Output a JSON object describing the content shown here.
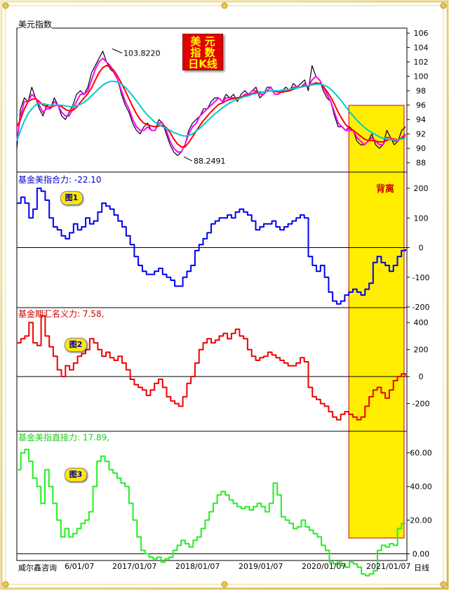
{
  "window": {
    "title": "美元指数",
    "company": "威尔鑫咨询",
    "period_label": "日线"
  },
  "badge": {
    "lines": [
      "美  元",
      "指  数",
      "日K线"
    ]
  },
  "divergence_label": "背离",
  "chart_data": [
    {
      "type": "line",
      "name": "price",
      "ylim": [
        87,
        106.5
      ],
      "yticks": [
        "88",
        "90",
        "92",
        "94",
        "96",
        "98",
        "100",
        "102",
        "104",
        "106"
      ],
      "annotations": [
        {
          "text": "103.8220",
          "x": "2017-01",
          "y": 103.82
        },
        {
          "text": "88.2491",
          "x": "2018-02",
          "y": 88.25
        }
      ],
      "x_ticks": [
        "6/01/07",
        "2017/01/07",
        "2018/01/07",
        "2019/01/07",
        "2020/01/07",
        "2021/01/07"
      ],
      "series": [
        {
          "color": "#000000",
          "values": [
            90.0,
            95.5,
            97.0,
            96.5,
            98.5,
            97.0,
            95.5,
            94.5,
            96.0,
            95.5,
            97.0,
            96.0,
            94.5,
            94.0,
            95.0,
            96.0,
            97.5,
            98.0,
            97.5,
            98.5,
            100.5,
            101.5,
            102.5,
            103.5,
            102.0,
            101.0,
            100.5,
            99.5,
            97.5,
            96.0,
            95.0,
            93.5,
            92.5,
            92.0,
            93.0,
            93.5,
            92.5,
            92.5,
            94.0,
            93.5,
            92.0,
            90.5,
            89.5,
            89.0,
            89.5,
            90.5,
            92.5,
            93.5,
            94.0,
            94.5,
            95.5,
            95.5,
            96.5,
            97.0,
            97.0,
            96.5,
            97.5,
            97.0,
            97.5,
            96.5,
            97.5,
            98.0,
            97.5,
            98.0,
            98.5,
            97.0,
            97.5,
            98.5,
            98.5,
            97.5,
            97.5,
            98.0,
            98.5,
            98.0,
            99.0,
            98.5,
            99.0,
            99.5,
            98.0,
            101.5,
            100.0,
            99.5,
            98.0,
            97.0,
            96.5,
            94.5,
            93.0,
            93.0,
            92.5,
            93.0,
            92.5,
            91.0,
            90.5,
            90.5,
            91.0,
            92.0,
            90.5,
            90.0,
            90.5,
            92.5,
            91.5,
            90.5,
            91.0,
            92.5,
            93.0
          ]
        },
        {
          "color": "#ff00ff",
          "values": [
            91.0,
            94.5,
            96.5,
            96.5,
            97.5,
            97.0,
            96.0,
            95.0,
            95.5,
            95.5,
            96.5,
            96.0,
            95.0,
            94.5,
            94.5,
            95.5,
            96.5,
            97.5,
            97.5,
            98.0,
            99.5,
            101.0,
            102.0,
            102.5,
            102.0,
            101.5,
            100.5,
            99.5,
            98.0,
            96.5,
            95.5,
            94.0,
            93.0,
            92.5,
            92.5,
            93.0,
            92.5,
            92.5,
            93.5,
            93.5,
            92.5,
            91.0,
            90.0,
            89.5,
            89.5,
            90.5,
            92.0,
            93.0,
            93.5,
            94.5,
            95.0,
            95.5,
            96.0,
            96.5,
            97.0,
            96.5,
            97.0,
            97.0,
            97.0,
            97.0,
            97.0,
            97.5,
            97.5,
            98.0,
            98.0,
            97.5,
            97.5,
            98.0,
            98.5,
            97.5,
            97.5,
            98.0,
            98.0,
            98.0,
            98.5,
            98.5,
            98.5,
            99.0,
            98.5,
            99.5,
            100.0,
            99.5,
            98.5,
            97.5,
            96.5,
            95.0,
            93.5,
            93.0,
            92.5,
            92.5,
            92.5,
            91.5,
            91.0,
            90.5,
            91.0,
            91.5,
            91.0,
            90.5,
            90.5,
            91.5,
            91.5,
            91.0,
            91.0,
            91.5,
            92.0
          ]
        },
        {
          "color": "#ff0000",
          "values": [
            93.0,
            94.0,
            95.5,
            96.5,
            96.8,
            96.9,
            96.5,
            96.0,
            95.8,
            95.7,
            95.9,
            96.0,
            95.8,
            95.4,
            95.2,
            95.3,
            95.7,
            96.4,
            97.0,
            97.6,
            98.4,
            99.5,
            100.5,
            101.2,
            101.5,
            101.3,
            100.8,
            100.0,
            99.0,
            98.0,
            96.9,
            95.8,
            94.8,
            94.0,
            93.5,
            93.3,
            93.1,
            93.0,
            93.1,
            93.2,
            92.9,
            92.2,
            91.3,
            90.6,
            90.2,
            90.2,
            90.8,
            91.6,
            92.4,
            93.2,
            93.9,
            94.5,
            95.1,
            95.6,
            96.1,
            96.3,
            96.6,
            96.8,
            96.9,
            97.0,
            97.1,
            97.3,
            97.4,
            97.6,
            97.8,
            97.8,
            97.8,
            97.9,
            98.0,
            97.9,
            97.8,
            97.8,
            97.9,
            98.0,
            98.2,
            98.4,
            98.5,
            98.7,
            98.6,
            98.9,
            99.1,
            99.0,
            98.6,
            97.9,
            97.1,
            96.1,
            95.0,
            94.1,
            93.3,
            92.8,
            92.5,
            92.1,
            91.7,
            91.3,
            91.1,
            91.1,
            91.0,
            90.9,
            90.9,
            91.1,
            91.3,
            91.3,
            91.2,
            91.4,
            91.8
          ]
        },
        {
          "color": "#00cccc",
          "values": [
            91.0,
            92.5,
            93.8,
            94.8,
            95.5,
            96.0,
            96.2,
            96.2,
            96.1,
            96.0,
            96.0,
            96.0,
            96.0,
            95.9,
            95.8,
            95.8,
            95.9,
            96.1,
            96.4,
            96.8,
            97.3,
            97.8,
            98.3,
            98.8,
            99.1,
            99.3,
            99.3,
            99.2,
            98.9,
            98.5,
            97.9,
            97.3,
            96.6,
            95.9,
            95.2,
            94.6,
            94.1,
            93.6,
            93.3,
            93.0,
            92.8,
            92.5,
            92.2,
            92.0,
            91.8,
            91.7,
            91.8,
            92.0,
            92.4,
            92.8,
            93.3,
            93.8,
            94.3,
            94.8,
            95.2,
            95.6,
            96.0,
            96.3,
            96.6,
            96.8,
            97.0,
            97.2,
            97.3,
            97.5,
            97.6,
            97.7,
            97.8,
            97.9,
            98.0,
            98.0,
            98.0,
            98.1,
            98.1,
            98.2,
            98.3,
            98.4,
            98.5,
            98.6,
            98.7,
            98.8,
            98.9,
            98.9,
            98.8,
            98.6,
            98.2,
            97.7,
            97.1,
            96.5,
            95.8,
            95.1,
            94.5,
            93.9,
            93.4,
            92.9,
            92.5,
            92.2,
            91.9,
            91.6,
            91.4,
            91.3,
            91.2,
            91.2,
            91.2,
            91.3,
            91.4
          ]
        }
      ]
    },
    {
      "type": "line",
      "name": "panel1",
      "title": "基金美指合力: -22.10",
      "label": "图1",
      "ylim": [
        -200,
        250
      ],
      "yticks": [
        "200",
        "100",
        "0",
        "-100",
        "-200"
      ],
      "series": [
        {
          "color": "#0000ee",
          "values": [
            150,
            170,
            150,
            100,
            130,
            200,
            190,
            160,
            100,
            70,
            60,
            40,
            30,
            50,
            80,
            60,
            70,
            100,
            80,
            90,
            120,
            150,
            140,
            130,
            110,
            90,
            70,
            40,
            10,
            -30,
            -60,
            -80,
            -90,
            -90,
            -80,
            -70,
            -90,
            -100,
            -110,
            -130,
            -130,
            -100,
            -80,
            -60,
            -10,
            10,
            30,
            50,
            80,
            90,
            100,
            100,
            110,
            100,
            120,
            130,
            120,
            110,
            90,
            60,
            70,
            80,
            80,
            90,
            70,
            60,
            70,
            80,
            90,
            100,
            110,
            100,
            -30,
            -60,
            -80,
            -60,
            -100,
            -150,
            -180,
            -190,
            -180,
            -160,
            -150,
            -140,
            -150,
            -160,
            -140,
            -120,
            -50,
            -30,
            -50,
            -60,
            -80,
            -60,
            -30,
            -10,
            -5
          ]
        }
      ]
    },
    {
      "type": "line",
      "name": "panel2",
      "title": "基金期汇名义力: 7.58,",
      "label": "图2",
      "ylim": [
        -400,
        500
      ],
      "yticks": [
        "400",
        "200",
        "0",
        "-200"
      ],
      "series": [
        {
          "color": "#ee0000",
          "values": [
            250,
            280,
            300,
            400,
            250,
            230,
            450,
            300,
            220,
            150,
            50,
            0,
            80,
            50,
            100,
            150,
            170,
            200,
            280,
            250,
            200,
            150,
            180,
            140,
            120,
            150,
            100,
            50,
            -20,
            -60,
            -80,
            -100,
            -140,
            -100,
            -50,
            -20,
            -80,
            -150,
            -180,
            -200,
            -220,
            -150,
            -50,
            0,
            100,
            200,
            250,
            280,
            250,
            270,
            300,
            320,
            280,
            320,
            350,
            300,
            280,
            200,
            150,
            120,
            140,
            150,
            180,
            160,
            140,
            120,
            100,
            80,
            80,
            100,
            140,
            110,
            -80,
            -150,
            -170,
            -200,
            -220,
            -260,
            -300,
            -320,
            -280,
            -260,
            -280,
            -300,
            -320,
            -300,
            -220,
            -150,
            -100,
            -80,
            -120,
            -160,
            -100,
            -30,
            0,
            20,
            8
          ]
        }
      ]
    },
    {
      "type": "line",
      "name": "panel3",
      "title": "基金美指直接力: 17.89,",
      "label": "图3",
      "ylim": [
        -4,
        72
      ],
      "yticks": [
        "60.00",
        "40.00",
        "20.00",
        "0.00"
      ],
      "series": [
        {
          "color": "#22ee22",
          "values": [
            50,
            60,
            62,
            55,
            45,
            40,
            30,
            50,
            40,
            30,
            20,
            10,
            15,
            10,
            12,
            15,
            18,
            20,
            25,
            40,
            55,
            58,
            55,
            50,
            48,
            45,
            42,
            40,
            30,
            20,
            10,
            2,
            0,
            -2,
            -3,
            -2,
            -5,
            -3,
            -2,
            2,
            5,
            8,
            6,
            4,
            8,
            10,
            15,
            20,
            25,
            30,
            35,
            37,
            35,
            32,
            30,
            28,
            27,
            28,
            26,
            28,
            30,
            28,
            25,
            30,
            42,
            35,
            22,
            20,
            18,
            15,
            16,
            20,
            16,
            14,
            12,
            10,
            5,
            2,
            -5,
            -6,
            -5,
            -7,
            -8,
            -5,
            -6,
            -8,
            -12,
            -13,
            -12,
            -10,
            2,
            5,
            4,
            6,
            5,
            15,
            18,
            18
          ]
        }
      ]
    }
  ],
  "x_labels": [
    "6/01/07",
    "2017/01/07",
    "2018/01/07",
    "2019/01/07",
    "2020/01/07",
    "2021/01/07"
  ]
}
